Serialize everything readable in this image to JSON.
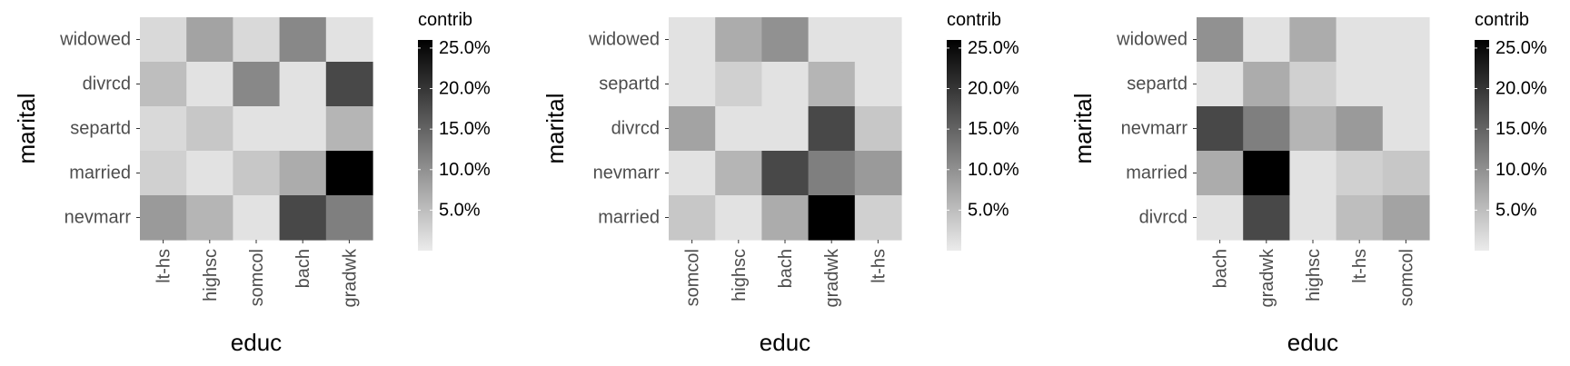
{
  "chart_data": [
    {
      "type": "heatmap",
      "xlabel": "educ",
      "ylabel": "marital",
      "x_categories": [
        "lt-hs",
        "highsc",
        "somcol",
        "bach",
        "gradwk"
      ],
      "y_categories": [
        "widowed",
        "divrcd",
        "separtd",
        "married",
        "nevmarr"
      ],
      "values": [
        [
          2,
          8,
          2,
          11,
          1
        ],
        [
          5,
          1,
          11,
          1,
          18
        ],
        [
          2,
          4,
          1,
          1,
          6
        ],
        [
          3,
          1,
          4,
          7,
          26
        ],
        [
          9,
          6,
          1,
          18,
          12
        ]
      ],
      "legend": {
        "title": "contrib",
        "ticks": [
          5,
          10,
          15,
          20,
          25
        ],
        "tick_labels": [
          "5.0%",
          "10.0%",
          "15.0%",
          "20.0%",
          "25.0%"
        ],
        "range": [
          0,
          26
        ],
        "position": "right"
      },
      "colors": {
        "low": "#ebebeb",
        "high": "#000000"
      }
    },
    {
      "type": "heatmap",
      "xlabel": "educ",
      "ylabel": "marital",
      "x_categories": [
        "somcol",
        "highsc",
        "bach",
        "gradwk",
        "lt-hs"
      ],
      "y_categories": [
        "widowed",
        "separtd",
        "divrcd",
        "nevmarr",
        "married"
      ],
      "values": [
        [
          1,
          7,
          10,
          1,
          1
        ],
        [
          1,
          3,
          1,
          6,
          1
        ],
        [
          8,
          1,
          1,
          18,
          4
        ],
        [
          1,
          6,
          18,
          12,
          9
        ],
        [
          4,
          1,
          7,
          26,
          3
        ]
      ],
      "legend": {
        "title": "contrib",
        "ticks": [
          5,
          10,
          15,
          20,
          25
        ],
        "tick_labels": [
          "5.0%",
          "10.0%",
          "15.0%",
          "20.0%",
          "25.0%"
        ],
        "range": [
          0,
          26
        ],
        "position": "right"
      },
      "colors": {
        "low": "#ebebeb",
        "high": "#000000"
      }
    },
    {
      "type": "heatmap",
      "xlabel": "educ",
      "ylabel": "marital",
      "x_categories": [
        "bach",
        "gradwk",
        "highsc",
        "lt-hs",
        "somcol"
      ],
      "y_categories": [
        "widowed",
        "separtd",
        "nevmarr",
        "married",
        "divrcd"
      ],
      "values": [
        [
          10,
          1,
          7,
          1,
          1
        ],
        [
          1,
          7,
          3,
          1,
          1
        ],
        [
          18,
          12,
          6,
          9,
          1
        ],
        [
          7,
          26,
          1,
          3,
          4
        ],
        [
          1,
          18,
          1,
          5,
          8
        ]
      ],
      "legend": {
        "title": "contrib",
        "ticks": [
          5,
          10,
          15,
          20,
          25
        ],
        "tick_labels": [
          "5.0%",
          "10.0%",
          "15.0%",
          "20.0%",
          "25.0%"
        ],
        "range": [
          0,
          26
        ],
        "position": "right"
      },
      "colors": {
        "low": "#ebebeb",
        "high": "#000000"
      }
    }
  ]
}
